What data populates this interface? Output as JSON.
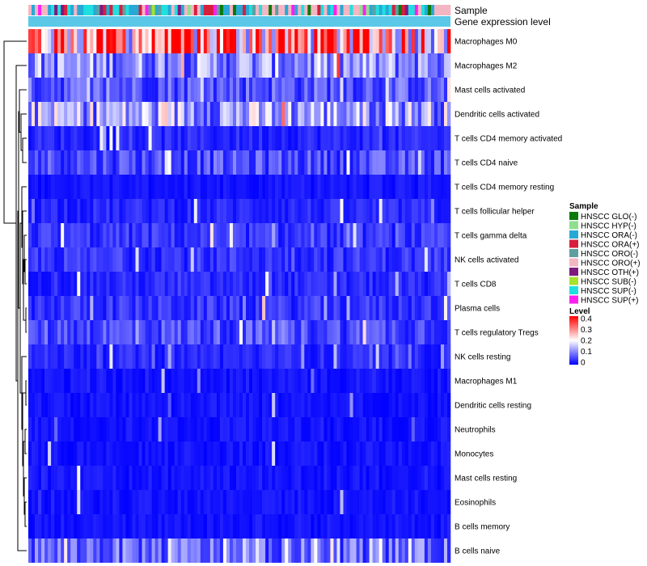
{
  "chart_data": {
    "type": "heatmap",
    "annotation_tracks": [
      "Sample",
      "Gene expression level"
    ],
    "rows": [
      "Macrophages M0",
      "Macrophages M2",
      "Mast cells activated",
      "Dendritic cells activated",
      "T cells CD4 memory activated",
      "T cells CD4 naive",
      "T cells CD4 memory resting",
      "T cells follicular helper",
      "T cells gamma delta",
      "NK cells activated",
      "T cells CD8",
      "Plasma cells",
      "T cells regulatory  Tregs",
      "NK cells resting",
      "Macrophages M1",
      "Dendritic cells resting",
      "Neutrophils",
      "Monocytes",
      "Mast cells resting",
      "Eosinophils",
      "B cells memory",
      "B cells naive"
    ],
    "row_typical_level": [
      0.28,
      0.11,
      0.07,
      0.13,
      0.03,
      0.06,
      0.02,
      0.03,
      0.04,
      0.04,
      0.03,
      0.04,
      0.06,
      0.03,
      0.02,
      0.01,
      0.01,
      0.01,
      0.02,
      0.01,
      0.01,
      0.08
    ],
    "n_samples": 130,
    "sample_legend": {
      "title": "Sample",
      "entries": [
        {
          "label": "HNSCC GLO(-)",
          "color": "#0b7a0b"
        },
        {
          "label": "HNSCC HYP(-)",
          "color": "#8fdf8f"
        },
        {
          "label": "HNSCC ORA(-)",
          "color": "#27a9d6"
        },
        {
          "label": "HNSCC ORA(+)",
          "color": "#d6203d"
        },
        {
          "label": "HNSCC ORO(-)",
          "color": "#5f9ea0"
        },
        {
          "label": "HNSCC ORO(+)",
          "color": "#f4b6c2"
        },
        {
          "label": "HNSCC OTH(+)",
          "color": "#7f1a7f"
        },
        {
          "label": "HNSCC SUB(-)",
          "color": "#a6e22e"
        },
        {
          "label": "HNSCC SUP(-)",
          "color": "#1fe0e0"
        },
        {
          "label": "HNSCC SUP(+)",
          "color": "#ff1ff0"
        }
      ]
    },
    "level_legend": {
      "title": "Level",
      "ticks": [
        "0.4",
        "0.3",
        "0.2",
        "0.1",
        "0"
      ],
      "range": [
        0,
        0.4
      ],
      "colors": [
        "#0000ff",
        "#ffffff",
        "#ff0000"
      ]
    },
    "gene_expression_color": "#5bc8e8",
    "dendrogram": "row clustering tree on left"
  }
}
